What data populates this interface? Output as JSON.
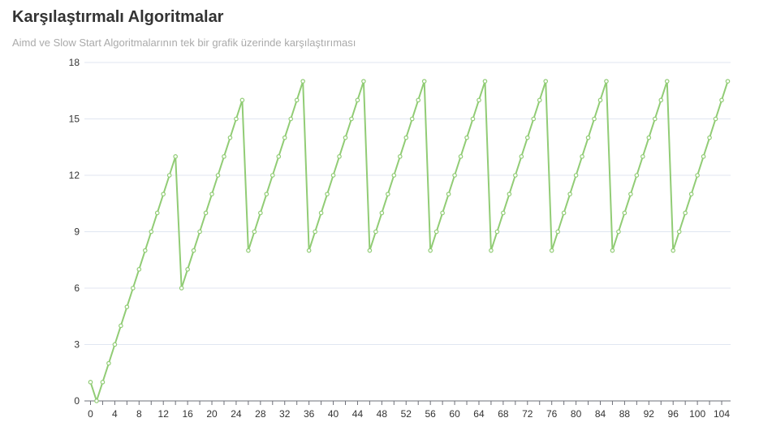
{
  "chart_data": {
    "type": "line",
    "title": "Karşılaştırmalı Algoritmalar",
    "subtitle": "Aimd ve Slow Start Algoritmalarının tek bir grafik üzerinde karşılaştırıması",
    "xlabel": "",
    "ylabel": "",
    "ylim": [
      0,
      18
    ],
    "xlim": [
      0,
      105
    ],
    "y_ticks": [
      "0",
      "3",
      "6",
      "9",
      "12",
      "15",
      "18"
    ],
    "x_ticks": [
      "0",
      "4",
      "8",
      "12",
      "16",
      "20",
      "24",
      "28",
      "32",
      "36",
      "40",
      "44",
      "48",
      "52",
      "56",
      "60",
      "64",
      "68",
      "72",
      "76",
      "80",
      "84",
      "88",
      "92",
      "96",
      "100",
      "104"
    ],
    "grid": true,
    "legend": "none",
    "line_color": "#91cc75",
    "series": [
      {
        "values": [
          1,
          0,
          1,
          2,
          3,
          4,
          5,
          6,
          7,
          8,
          9,
          10,
          11,
          12,
          13,
          6,
          7,
          8,
          9,
          10,
          11,
          12,
          13,
          14,
          15,
          16,
          8,
          9,
          10,
          11,
          12,
          13,
          14,
          15,
          16,
          17,
          8,
          9,
          10,
          11,
          12,
          13,
          14,
          15,
          16,
          17,
          8,
          9,
          10,
          11,
          12,
          13,
          14,
          15,
          16,
          17,
          8,
          9,
          10,
          11,
          12,
          13,
          14,
          15,
          16,
          17,
          8,
          9,
          10,
          11,
          12,
          13,
          14,
          15,
          16,
          17,
          8,
          9,
          10,
          11,
          12,
          13,
          14,
          15,
          16,
          17,
          8,
          9,
          10,
          11,
          12,
          13,
          14,
          15,
          16,
          17,
          8,
          9,
          10,
          11,
          12,
          13,
          14,
          15,
          16,
          17
        ]
      }
    ]
  }
}
